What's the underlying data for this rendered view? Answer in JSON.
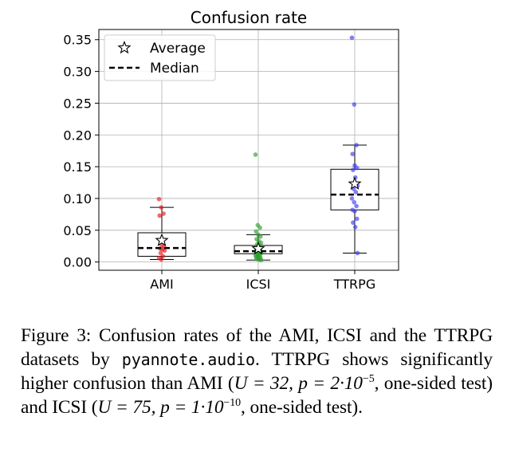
{
  "chart_data": {
    "type": "box",
    "title": "Confusion rate",
    "xlabel": "",
    "ylabel": "",
    "categories": [
      "AMI",
      "ICSI",
      "TTRPG"
    ],
    "ylim": [
      -0.013,
      0.366
    ],
    "yticks": [
      0.0,
      0.05,
      0.1,
      0.15,
      0.2,
      0.25,
      0.3,
      0.35
    ],
    "ytick_labels": [
      "0.00",
      "0.05",
      "0.10",
      "0.15",
      "0.20",
      "0.25",
      "0.30",
      "0.35"
    ],
    "grid": true,
    "legend": {
      "position": "top-left",
      "entries": [
        {
          "label": "Average",
          "marker": "star"
        },
        {
          "label": "Median",
          "marker": "dashed-line"
        }
      ]
    },
    "boxes": [
      {
        "category": "AMI",
        "color": "#e41a1c",
        "whisker_low": 0.004,
        "q1": 0.009,
        "median": 0.022,
        "q3": 0.046,
        "whisker_high": 0.086,
        "average": 0.034,
        "points": [
          0.099,
          0.086,
          0.076,
          0.073,
          0.027,
          0.024,
          0.021,
          0.02,
          0.018,
          0.014,
          0.009,
          0.006,
          0.004
        ]
      },
      {
        "category": "ICSI",
        "color": "#2ca02c",
        "whisker_low": 0.003,
        "q1": 0.013,
        "median": 0.017,
        "q3": 0.026,
        "whisker_high": 0.043,
        "average": 0.021,
        "points": [
          0.169,
          0.058,
          0.054,
          0.048,
          0.043,
          0.04,
          0.036,
          0.033,
          0.03,
          0.028,
          0.026,
          0.024,
          0.022,
          0.02,
          0.019,
          0.018,
          0.017,
          0.016,
          0.015,
          0.014,
          0.013,
          0.012,
          0.011,
          0.01,
          0.009,
          0.008,
          0.007,
          0.006,
          0.005,
          0.004,
          0.003
        ]
      },
      {
        "category": "TTRPG",
        "color": "#3d3df0",
        "whisker_low": 0.014,
        "q1": 0.082,
        "median": 0.106,
        "q3": 0.146,
        "whisker_high": 0.184,
        "average": 0.123,
        "points": [
          0.353,
          0.248,
          0.184,
          0.17,
          0.152,
          0.148,
          0.145,
          0.133,
          0.12,
          0.115,
          0.11,
          0.1,
          0.094,
          0.088,
          0.082,
          0.08,
          0.068,
          0.062,
          0.055,
          0.014
        ]
      }
    ]
  },
  "caption": {
    "part1": "Figure 3:  Confusion rates of the AMI, ICSI and the TTRPG datasets by ",
    "code": "pyannote.audio",
    "part2": ". TTRPG shows significantly higher confusion than AMI (",
    "stat1": "U = 32, p = 2·10",
    "exp1": "−5",
    "part3": ", one-sided test) and ICSI (",
    "stat2": "U = 75, p = 1·10",
    "exp2": "−10",
    "part4": ", one-sided test)."
  }
}
